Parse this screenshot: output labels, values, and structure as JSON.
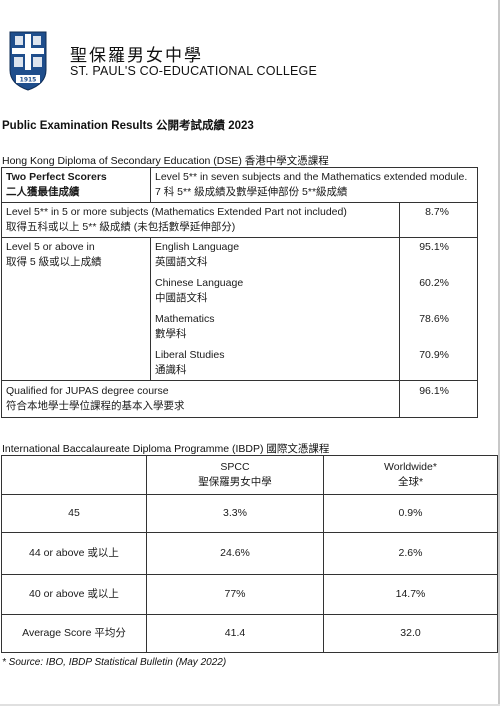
{
  "header": {
    "school_name_zh": "聖保羅男女中學",
    "school_name_en": "ST. PAUL'S CO-EDUCATIONAL COLLEGE",
    "crest_year": "1915"
  },
  "section_heading": "Public Examination Results  公開考試成績  2023",
  "dse": {
    "heading": "Hong Kong Diploma of Secondary Education (DSE)  香港中學文憑課程",
    "perfect": {
      "label_en": "Two Perfect Scorers",
      "label_zh": "二人獲最佳成績",
      "desc_en": "Level 5** in seven subjects and the Mathematics extended module.",
      "desc_zh": "7 科 5**  級成績及數學延伸部份 5**級成績"
    },
    "five_subjects": {
      "label_en": "Level 5** in 5 or more subjects (Mathematics Extended Part not included)",
      "label_zh": "取得五科或以上  5**  級成績 (未包括數學延伸部分)",
      "value": "8.7%"
    },
    "level5": {
      "label_en": "Level 5 or above in",
      "label_zh": "取得  5  級或以上成績",
      "subjects": [
        {
          "en": "English Language",
          "zh": "英國語文科",
          "value": "95.1%"
        },
        {
          "en": "Chinese Language",
          "zh": "中國語文科",
          "value": "60.2%"
        },
        {
          "en": "Mathematics",
          "zh": "數學科",
          "value": "78.6%"
        },
        {
          "en": "Liberal Studies",
          "zh": "通識科",
          "value": "70.9%"
        }
      ]
    },
    "jupas": {
      "label_en": "Qualified for JUPAS degree course",
      "label_zh": "符合本地學士學位課程的基本入學要求",
      "value": "96.1%"
    }
  },
  "ib": {
    "heading": "International Baccalaureate Diploma Programme (IBDP)  國際文憑課程",
    "col_spcc_en": "SPCC",
    "col_spcc_zh": "聖保羅男女中學",
    "col_world_en": "Worldwide*",
    "col_world_zh": "全球*",
    "rows": [
      {
        "label": "45",
        "spcc": "3.3%",
        "world": "0.9%"
      },
      {
        "label": "44 or above  或以上",
        "spcc": "24.6%",
        "world": "2.6%"
      },
      {
        "label": "40 or above  或以上",
        "spcc": "77%",
        "world": "14.7%"
      },
      {
        "label": "Average Score  平均分",
        "spcc": "41.4",
        "world": "32.0"
      }
    ]
  },
  "footnote": "* Source: IBO, IBDP Statistical Bulletin (May 2022)",
  "colors": {
    "crest_blue": "#1f4e8c",
    "text": "#1a1a1a",
    "border": "#333333"
  }
}
